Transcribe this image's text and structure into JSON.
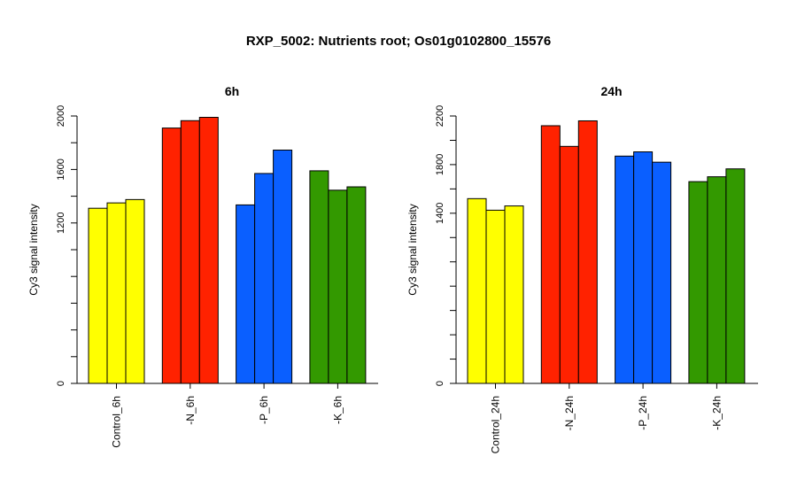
{
  "title": "RXP_5002: Nutrients root; Os01g0102800_15576",
  "colors": {
    "Control": "#ffff00",
    "N": "#ff2200",
    "P": "#0a5fff",
    "K": "#339900"
  },
  "chart_data": [
    {
      "type": "bar",
      "title": "6h",
      "ylabel": "Cy3 signal intensity",
      "ylim": [
        0,
        2000
      ],
      "yticks": [
        0,
        1200,
        1600,
        2000
      ],
      "categories": [
        "Control_6h",
        "-N_6h",
        "-P_6h",
        "-K_6h"
      ],
      "series_colors": [
        "#ffff00",
        "#ff2200",
        "#0a5fff",
        "#339900"
      ],
      "values": [
        [
          1310,
          1350,
          1375
        ],
        [
          1910,
          1965,
          1990
        ],
        [
          1335,
          1570,
          1745
        ],
        [
          1590,
          1445,
          1470
        ]
      ]
    },
    {
      "type": "bar",
      "title": "24h",
      "ylabel": "Cy3 signal intensity",
      "ylim": [
        0,
        2200
      ],
      "yticks": [
        0,
        1400,
        1800,
        2200
      ],
      "categories": [
        "Control_24h",
        "-N_24h",
        "-P_24h",
        "-K_24h"
      ],
      "series_colors": [
        "#ffff00",
        "#ff2200",
        "#0a5fff",
        "#339900"
      ],
      "values": [
        [
          1520,
          1425,
          1460
        ],
        [
          2120,
          1950,
          2160
        ],
        [
          1870,
          1905,
          1820
        ],
        [
          1660,
          1700,
          1765
        ]
      ]
    }
  ]
}
